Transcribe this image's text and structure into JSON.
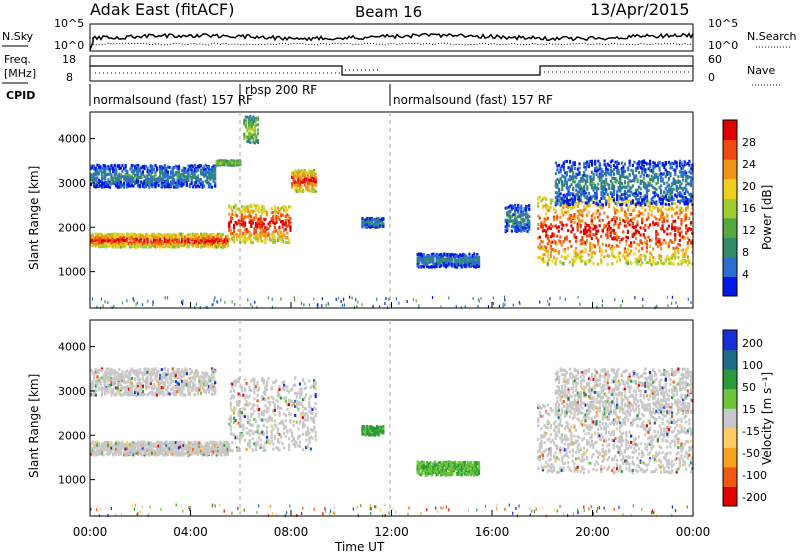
{
  "header": {
    "station": "Adak East (fitACF)",
    "beam": "Beam 16",
    "date": "13/Apr/2015"
  },
  "noise_panel": {
    "left_label": "N.Sky",
    "right_label": "N.Search",
    "left_ticks": [
      "10^5",
      "10^0"
    ],
    "right_ticks": [
      "10^5",
      "10^0"
    ]
  },
  "freq_panel": {
    "left_label_1": "Freq.",
    "left_label_2": "[MHz]",
    "right_label": "Nave",
    "left_ticks": [
      "18",
      "8"
    ],
    "right_ticks": [
      "60",
      "0"
    ]
  },
  "cpid_panel": {
    "label": "CPID",
    "segments": [
      {
        "text": "normalsound (fast) 157 RF"
      },
      {
        "text": "rbsp 200 RF"
      },
      {
        "text": "normalsound (fast) 157 RF"
      }
    ]
  },
  "colors": {
    "power_scale": [
      "#0018e6",
      "#2c6fd0",
      "#338a6a",
      "#58a842",
      "#a0cc30",
      "#f0d01e",
      "#f29418",
      "#f04a10",
      "#e00000"
    ],
    "velocity_scale": [
      "#1a2ed8",
      "#1f6a8a",
      "#2a9a3a",
      "#6cc43a",
      "#c8c8c8",
      "#ffcc66",
      "#f4a21e",
      "#f05a10",
      "#e00000"
    ]
  },
  "chart_data": [
    {
      "type": "heatmap",
      "name": "power",
      "xlabel": "Time UT",
      "ylabel": "Slant Range [km]",
      "x_ticks": [
        "00:00",
        "04:00",
        "08:00",
        "12:00",
        "16:00",
        "20:00",
        "00:00"
      ],
      "y_ticks": [
        "1000",
        "2000",
        "3000",
        "4000"
      ],
      "xlim": [
        0,
        24
      ],
      "ylim": [
        180,
        4600
      ],
      "colorbar": {
        "label": "Power [dB]",
        "ticks": [
          "4",
          "8",
          "12",
          "16",
          "20",
          "24",
          "28"
        ]
      },
      "features": [
        {
          "t": [
            0.0,
            5.5
          ],
          "range": [
            1550,
            1850
          ],
          "level": "high"
        },
        {
          "t": [
            5.5,
            8.0
          ],
          "range": [
            1650,
            2500
          ],
          "level": "high"
        },
        {
          "t": [
            8.0,
            9.0
          ],
          "range": [
            2800,
            3300
          ],
          "level": "high"
        },
        {
          "t": [
            0.0,
            5.0
          ],
          "range": [
            2900,
            3400
          ],
          "level": "low"
        },
        {
          "t": [
            5.0,
            6.0
          ],
          "range": [
            3400,
            3500
          ],
          "level": "mid"
        },
        {
          "t": [
            6.1,
            6.7
          ],
          "range": [
            3900,
            4500
          ],
          "level": "mid"
        },
        {
          "t": [
            10.8,
            11.7
          ],
          "range": [
            2000,
            2200
          ],
          "level": "low"
        },
        {
          "t": [
            13.0,
            15.5
          ],
          "range": [
            1100,
            1400
          ],
          "level": "low"
        },
        {
          "t": [
            16.5,
            17.5
          ],
          "range": [
            1900,
            2500
          ],
          "level": "low"
        },
        {
          "t": [
            17.8,
            24.0
          ],
          "range": [
            1150,
            2700
          ],
          "level": "high"
        },
        {
          "t": [
            18.5,
            24.0
          ],
          "range": [
            2500,
            3500
          ],
          "level": "low"
        }
      ]
    },
    {
      "type": "heatmap",
      "name": "velocity",
      "xlabel": "Time UT",
      "ylabel": "Slant Range [km]",
      "x_ticks": [
        "00:00",
        "04:00",
        "08:00",
        "12:00",
        "16:00",
        "20:00",
        "00:00"
      ],
      "y_ticks": [
        "1000",
        "2000",
        "3000",
        "4000"
      ],
      "xlim": [
        0,
        24
      ],
      "ylim": [
        180,
        4600
      ],
      "colorbar": {
        "label": "Velocity [m s⁻¹]",
        "ticks": [
          "200",
          "100",
          "50",
          "15",
          "-15",
          "-50",
          "-100",
          "-200"
        ]
      },
      "features": [
        {
          "t": [
            0.0,
            5.5
          ],
          "range": [
            1550,
            1850
          ],
          "velocity": "-15 to 15"
        },
        {
          "t": [
            5.5,
            9.0
          ],
          "range": [
            1650,
            3300
          ],
          "velocity": "-15 to 15"
        },
        {
          "t": [
            0.0,
            5.0
          ],
          "range": [
            2900,
            3500
          ],
          "velocity": "-15 to 15"
        },
        {
          "t": [
            10.8,
            11.7
          ],
          "range": [
            2000,
            2200
          ],
          "velocity": "50 to 100"
        },
        {
          "t": [
            13.0,
            15.5
          ],
          "range": [
            1100,
            1400
          ],
          "velocity": "15 to 100"
        },
        {
          "t": [
            17.8,
            24.0
          ],
          "range": [
            1150,
            2700
          ],
          "velocity": "-15 to 15"
        },
        {
          "t": [
            18.5,
            24.0
          ],
          "range": [
            2500,
            3500
          ],
          "velocity": "-15 to 15"
        }
      ]
    }
  ]
}
